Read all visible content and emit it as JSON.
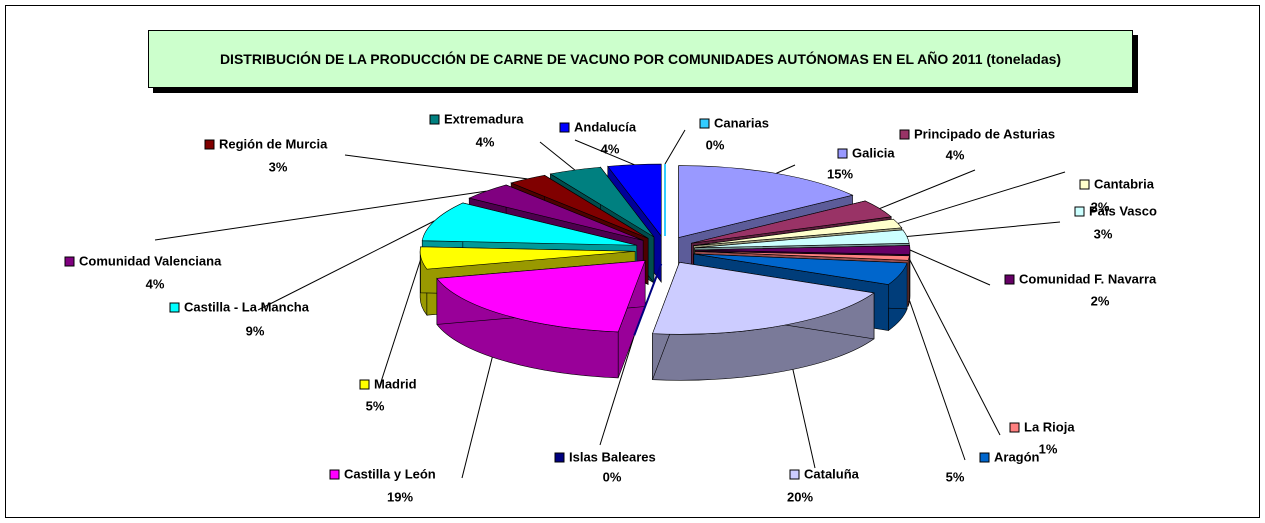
{
  "chart_data": {
    "type": "pie",
    "title": "DISTRIBUCIÓN DE LA PRODUCCIÓN DE CARNE DE VACUNO POR COMUNIDADES AUTÓNOMAS EN EL AÑO 2011 (toneladas)",
    "categories": [
      "Galicia",
      "Principado de Asturias",
      "Cantabria",
      "País Vasco",
      "Comunidad F. Navarra",
      "La Rioja",
      "Aragón",
      "Cataluña",
      "Islas Baleares",
      "Castilla y León",
      "Madrid",
      "Castilla - La Mancha",
      "Comunidad Valenciana",
      "Región de Murcia",
      "Extremadura",
      "Andalucía",
      "Canarias"
    ],
    "values": [
      15,
      4,
      2,
      3,
      2,
      1,
      5,
      20,
      0,
      19,
      5,
      9,
      4,
      3,
      4,
      4,
      0
    ],
    "value_labels": [
      "15%",
      "4%",
      "2%",
      "3%",
      "2%",
      "1%",
      "5%",
      "20%",
      "0%",
      "19%",
      "5%",
      "9%",
      "4%",
      "3%",
      "4%",
      "4%",
      "0%"
    ],
    "colors": [
      "#9999ff",
      "#993366",
      "#ffffcc",
      "#ccffff",
      "#660066",
      "#ff8080",
      "#0066cc",
      "#ccccff",
      "#000080",
      "#ff00ff",
      "#ffff00",
      "#00ffff",
      "#800080",
      "#800000",
      "#008080",
      "#0000ff",
      "#33ccff"
    ]
  }
}
